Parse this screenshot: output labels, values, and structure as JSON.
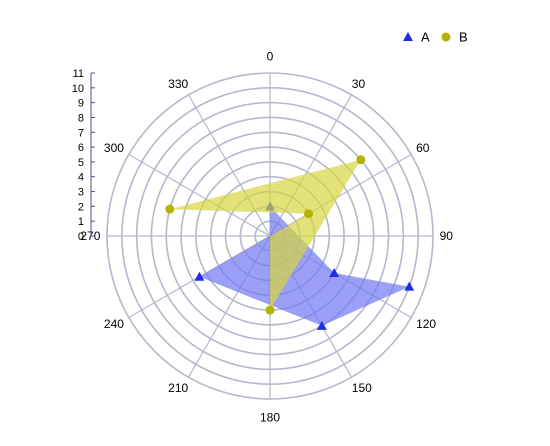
{
  "chart_data": {
    "type": "polar-area",
    "angular_axis": {
      "unit": "degrees",
      "direction": "clockwise",
      "zero_at": "top",
      "tick_labels": [
        "0",
        "30",
        "60",
        "90",
        "120",
        "150",
        "180",
        "210",
        "240",
        "270",
        "300",
        "330"
      ]
    },
    "radial_axis": {
      "range": [
        0,
        11
      ],
      "tick_labels": [
        "0",
        "1",
        "2",
        "3",
        "4",
        "5",
        "6",
        "7",
        "8",
        "9",
        "10",
        "11"
      ]
    },
    "grid": true,
    "legend": {
      "position": "top-right"
    },
    "series": [
      {
        "name": "A",
        "marker": "triangle",
        "color": "#1f2fe6",
        "fill": "#7077f2",
        "points": [
          {
            "angle": 0,
            "r": 2
          },
          {
            "angle": 120,
            "r": 5
          },
          {
            "angle": 110,
            "r": 10
          },
          {
            "angle": 150,
            "r": 7
          },
          {
            "angle": 240,
            "r": 5.5
          }
        ]
      },
      {
        "name": "B",
        "marker": "circle",
        "color": "#b3b300",
        "fill": "#d6d640",
        "points": [
          {
            "angle": 180,
            "r": 5
          },
          {
            "angle": 50,
            "r": 8
          },
          {
            "angle": 285,
            "r": 7
          },
          {
            "angle": 60,
            "r": 3
          }
        ]
      }
    ]
  }
}
